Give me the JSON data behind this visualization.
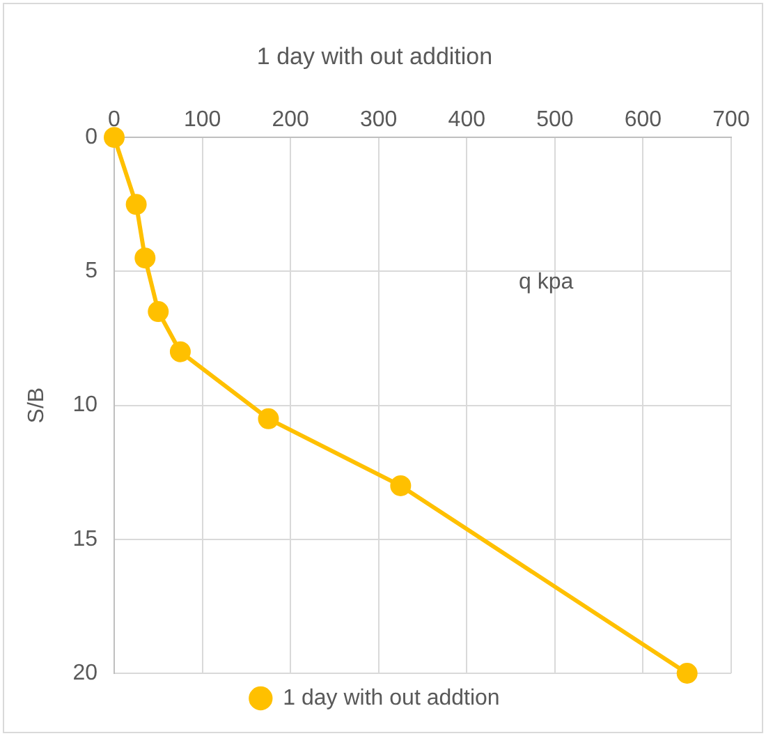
{
  "chart_data": {
    "type": "line",
    "title": "1 day with out addition",
    "xlabel": "q kpa",
    "ylabel": "S/B",
    "x": [
      0,
      25,
      35,
      50,
      75,
      175,
      325,
      650
    ],
    "series": [
      {
        "name": "1 day with out addtion",
        "color": "#ffc000",
        "values": [
          0,
          2.5,
          4.5,
          6.5,
          8,
          10.5,
          13,
          20
        ]
      }
    ],
    "xlim": [
      0,
      700
    ],
    "xticks": [
      0,
      100,
      200,
      300,
      400,
      500,
      600,
      700
    ],
    "ylim": [
      20,
      0
    ],
    "yticks": [
      0,
      5,
      10,
      15,
      20
    ],
    "grid": true,
    "legend": "bottom",
    "marker": "circle",
    "line_style": "solid"
  }
}
